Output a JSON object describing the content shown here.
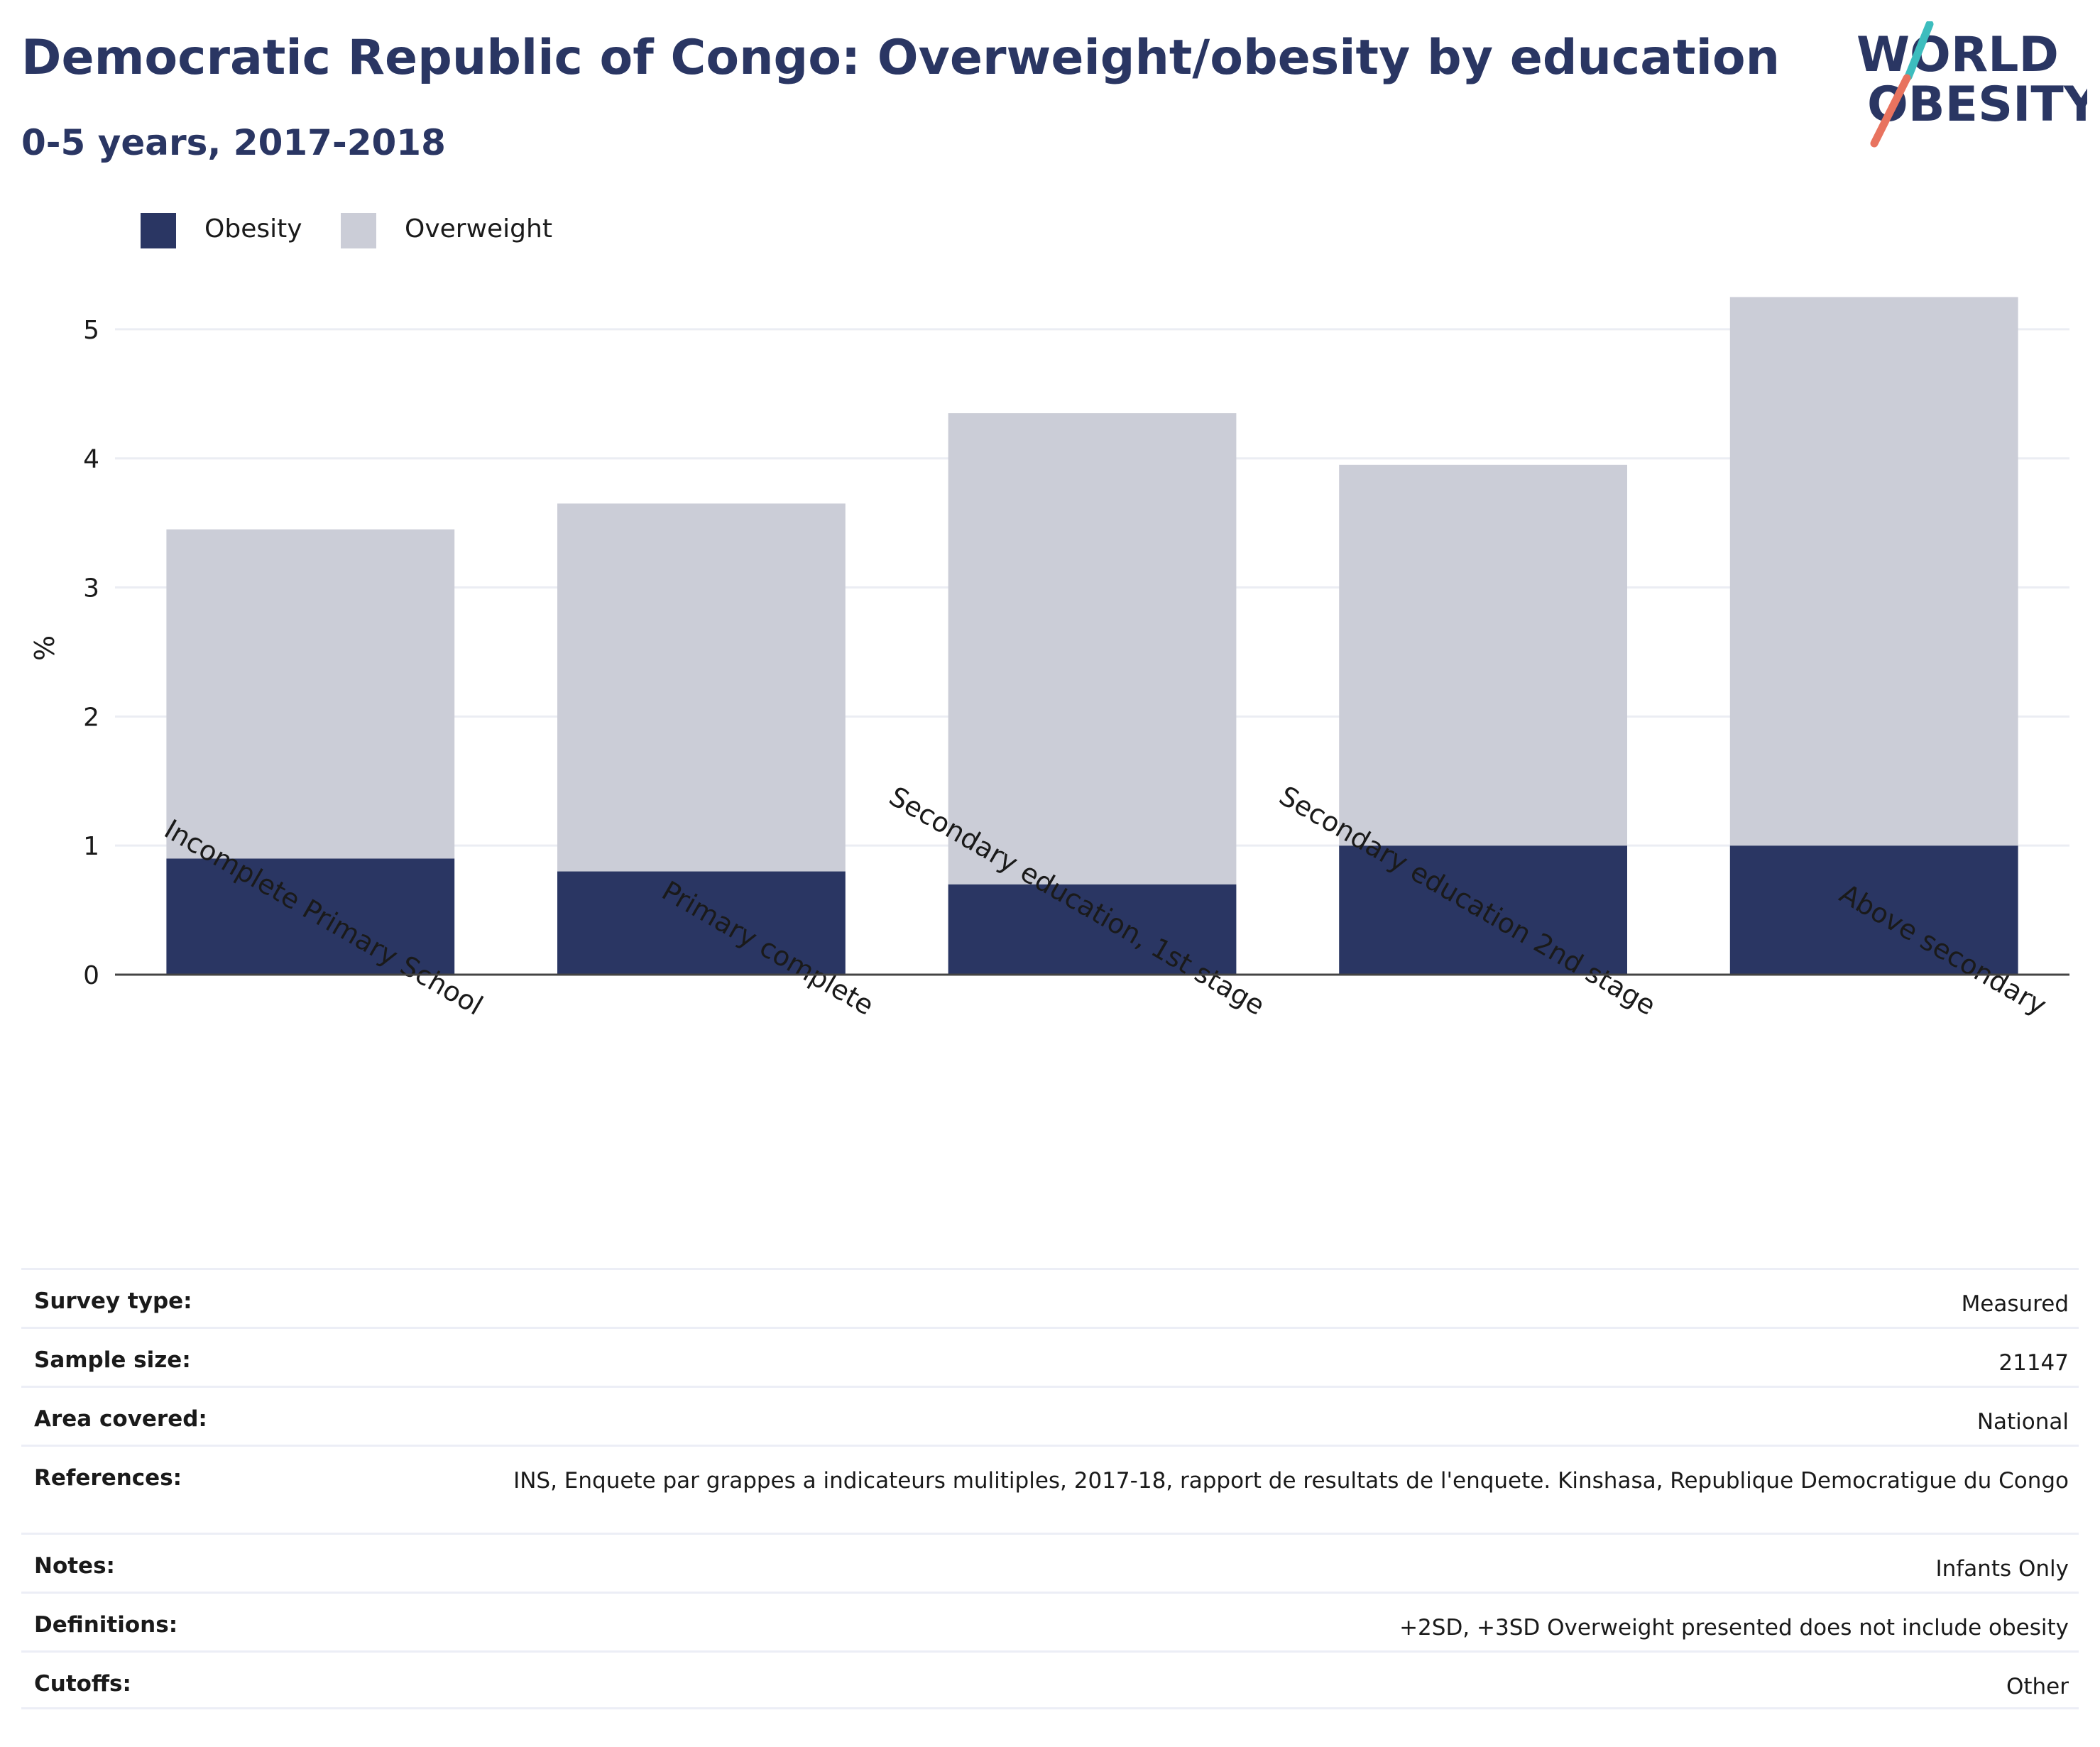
{
  "header": {
    "title": "Democratic Republic of Congo: Overweight/obesity by education",
    "subtitle": "0-5 years, 2017-2018"
  },
  "logo": {
    "line1": "WORLD",
    "line2": "OBESITY",
    "accent_teal": "#3dbdbe",
    "accent_coral": "#e8735f",
    "text_color": "#2a3663"
  },
  "legend": {
    "items": [
      {
        "label": "Obesity",
        "color": "#2a3663"
      },
      {
        "label": "Overweight",
        "color": "#cbcdd7"
      }
    ]
  },
  "chart_data": {
    "type": "bar",
    "stacked": true,
    "categories": [
      "Incomplete Primary School",
      "Primary complete",
      "Secondary education, 1st stage",
      "Secondary education 2nd stage",
      "Above secondary"
    ],
    "series": [
      {
        "name": "Obesity",
        "color": "#2a3663",
        "values": [
          0.9,
          0.8,
          0.7,
          1.0,
          1.0
        ]
      },
      {
        "name": "Overweight",
        "color": "#cbcdd7",
        "values": [
          2.55,
          2.85,
          3.65,
          2.95,
          4.25
        ]
      }
    ],
    "ylabel": "%",
    "xlabel": "",
    "ylim": [
      0,
      5.5
    ],
    "yticks": [
      0,
      1,
      2,
      3,
      4,
      5
    ],
    "grid": true,
    "legend_position": "top-left"
  },
  "metadata": {
    "rows": [
      {
        "label": "Survey type:",
        "value": "Measured"
      },
      {
        "label": "Sample size:",
        "value": "21147"
      },
      {
        "label": "Area covered:",
        "value": "National"
      },
      {
        "label": "References:",
        "value": "INS, Enquete par grappes a indicateurs mulitiples, 2017-18, rapport de resultats de l'enquete. Kinshasa, Republique Democratigue du Congo"
      },
      {
        "label": "Notes:",
        "value": "Infants Only"
      },
      {
        "label": "Definitions:",
        "value": "+2SD, +3SD Overweight presented does not include obesity"
      },
      {
        "label": "Cutoffs:",
        "value": "Other"
      }
    ]
  }
}
